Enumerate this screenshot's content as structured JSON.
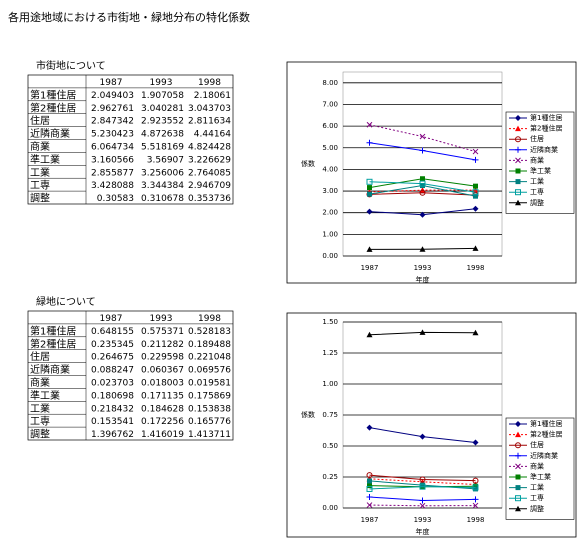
{
  "title": "各用途地域における市街地・緑地分布の特化係数",
  "tables": [
    {
      "heading": "市街地について",
      "columns": [
        "1987",
        "1993",
        "1998"
      ],
      "rows": [
        [
          "第1種住居",
          "2.049403",
          "1.907058",
          "2.18061"
        ],
        [
          "第2種住居",
          "2.962761",
          "3.040281",
          "3.043703"
        ],
        [
          "住居",
          "2.847342",
          "2.923552",
          "2.811634"
        ],
        [
          "近隣商業",
          "5.230423",
          "4.872638",
          "4.44164"
        ],
        [
          "商業",
          "6.064734",
          "5.518169",
          "4.824428"
        ],
        [
          "準工業",
          "3.160566",
          "3.56907",
          "3.226629"
        ],
        [
          "工業",
          "2.855877",
          "3.256006",
          "2.764085"
        ],
        [
          "工専",
          "3.428088",
          "3.344384",
          "2.946709"
        ],
        [
          "調整",
          "0.30583",
          "0.310678",
          "0.353736"
        ]
      ]
    },
    {
      "heading": "緑地について",
      "columns": [
        "1987",
        "1993",
        "1998"
      ],
      "rows": [
        [
          "第1種住居",
          "0.648155",
          "0.575371",
          "0.528183"
        ],
        [
          "第2種住居",
          "0.235345",
          "0.211282",
          "0.189488"
        ],
        [
          "住居",
          "0.264675",
          "0.229598",
          "0.221048"
        ],
        [
          "近隣商業",
          "0.088247",
          "0.060367",
          "0.069576"
        ],
        [
          "商業",
          "0.023703",
          "0.018003",
          "0.019581"
        ],
        [
          "準工業",
          "0.180698",
          "0.171135",
          "0.175869"
        ],
        [
          "工業",
          "0.218432",
          "0.184628",
          "0.153838"
        ],
        [
          "工専",
          "0.153541",
          "0.172256",
          "0.165776"
        ],
        [
          "調整",
          "1.396762",
          "1.416019",
          "1.413711"
        ]
      ]
    }
  ],
  "chart_data": [
    {
      "type": "line",
      "ylabel": "係数",
      "xlabel": "年度",
      "categories": [
        "1987",
        "1993",
        "1998"
      ],
      "ylim": [
        0,
        8.5
      ],
      "yticks": [
        {
          "value": 0,
          "label": "0.00"
        },
        {
          "value": 1,
          "label": "1.00"
        },
        {
          "value": 2,
          "label": "2.00"
        },
        {
          "value": 3,
          "label": "3.00"
        },
        {
          "value": 4,
          "label": "4.00"
        },
        {
          "value": 5,
          "label": "5.00"
        },
        {
          "value": 6,
          "label": "6.00"
        },
        {
          "value": 7,
          "label": "7.00"
        },
        {
          "value": 8,
          "label": "8.00"
        }
      ],
      "grid": true,
      "series": [
        {
          "name": "第1種住居",
          "color": "#000080",
          "marker": "diamond",
          "values": [
            2.049403,
            1.907058,
            2.18061
          ]
        },
        {
          "name": "第2種住居",
          "color": "#ff0000",
          "marker": "triangle",
          "dashed": true,
          "values": [
            2.962761,
            3.040281,
            3.043703
          ]
        },
        {
          "name": "住居",
          "color": "#a00000",
          "marker": "circle",
          "values": [
            2.847342,
            2.923552,
            2.811634
          ]
        },
        {
          "name": "近隣商業",
          "color": "#0000ff",
          "marker": "plus",
          "values": [
            5.230423,
            4.872638,
            4.44164
          ]
        },
        {
          "name": "商業",
          "color": "#800080",
          "marker": "x",
          "dashed": true,
          "values": [
            6.064734,
            5.518169,
            4.824428
          ]
        },
        {
          "name": "準工業",
          "color": "#008000",
          "marker": "square",
          "values": [
            3.160566,
            3.56907,
            3.226629
          ]
        },
        {
          "name": "工業",
          "color": "#008080",
          "marker": "square",
          "values": [
            2.855877,
            3.256006,
            2.764085
          ]
        },
        {
          "name": "工専",
          "color": "#00a0a0",
          "marker": "opensquare",
          "values": [
            3.428088,
            3.344384,
            2.946709
          ]
        },
        {
          "name": "調整",
          "color": "#000000",
          "marker": "triangle",
          "values": [
            0.30583,
            0.310678,
            0.353736
          ]
        }
      ]
    },
    {
      "type": "line",
      "ylabel": "係数",
      "xlabel": "年度",
      "categories": [
        "1987",
        "1993",
        "1998"
      ],
      "ylim": [
        0,
        1.5
      ],
      "yticks": [
        {
          "value": 0,
          "label": "0.00"
        },
        {
          "value": 0.25,
          "label": "0.25"
        },
        {
          "value": 0.5,
          "label": "0.50"
        },
        {
          "value": 0.75,
          "label": "0.75"
        },
        {
          "value": 1,
          "label": "1.00"
        },
        {
          "value": 1.25,
          "label": "1.25"
        },
        {
          "value": 1.5,
          "label": "1.50"
        }
      ],
      "grid": true,
      "series": [
        {
          "name": "第1種住居",
          "color": "#000080",
          "marker": "diamond",
          "values": [
            0.648155,
            0.575371,
            0.528183
          ]
        },
        {
          "name": "第2種住居",
          "color": "#ff0000",
          "marker": "triangle",
          "dashed": true,
          "values": [
            0.235345,
            0.211282,
            0.189488
          ]
        },
        {
          "name": "住居",
          "color": "#a00000",
          "marker": "circle",
          "values": [
            0.264675,
            0.229598,
            0.221048
          ]
        },
        {
          "name": "近隣商業",
          "color": "#0000ff",
          "marker": "plus",
          "values": [
            0.088247,
            0.060367,
            0.069576
          ]
        },
        {
          "name": "商業",
          "color": "#800080",
          "marker": "x",
          "dashed": true,
          "values": [
            0.023703,
            0.018003,
            0.019581
          ]
        },
        {
          "name": "準工業",
          "color": "#008000",
          "marker": "square",
          "values": [
            0.180698,
            0.171135,
            0.175869
          ]
        },
        {
          "name": "工業",
          "color": "#008080",
          "marker": "square",
          "values": [
            0.218432,
            0.184628,
            0.153838
          ]
        },
        {
          "name": "工専",
          "color": "#00a0a0",
          "marker": "opensquare",
          "values": [
            0.153541,
            0.172256,
            0.165776
          ]
        },
        {
          "name": "調整",
          "color": "#000000",
          "marker": "triangle",
          "values": [
            1.396762,
            1.416019,
            1.413711
          ]
        }
      ]
    }
  ]
}
